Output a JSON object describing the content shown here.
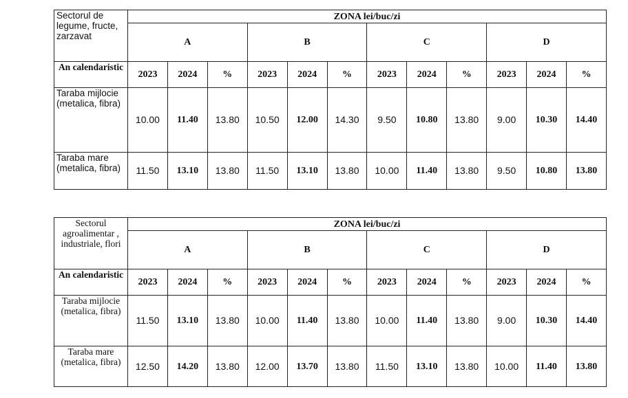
{
  "tables": [
    {
      "corner": "Sectorul de legume, fructe, zarzavat",
      "zone_title": "ZONA lei/buc/zi",
      "year_label": "An calendaristic",
      "zones": [
        {
          "name": "A",
          "columns": [
            "2023",
            "2024",
            "%"
          ]
        },
        {
          "name": "B",
          "columns": [
            "2023",
            "2024",
            "%"
          ]
        },
        {
          "name": "C",
          "columns": [
            "2023",
            "2024",
            "%"
          ]
        },
        {
          "name": "D",
          "columns": [
            "2023",
            "2024",
            "%"
          ]
        }
      ],
      "rows": [
        {
          "label": "Taraba mijlocie (metalica, fibra)",
          "values": [
            "10.00",
            "11.40",
            "13.80",
            "10.50",
            "12.00",
            "14.30",
            "9.50",
            "10.80",
            "13.80",
            "9.00",
            "10.30",
            "14.40"
          ]
        },
        {
          "label": "Taraba mare (metalica, fibra)",
          "values": [
            "11.50",
            "13.10",
            "13.80",
            "11.50",
            "13.10",
            "13.80",
            "10.00",
            "11.40",
            "13.80",
            "9.50",
            "10.80",
            "13.80"
          ]
        }
      ]
    },
    {
      "corner": "Sectorul agroalimentar , industriale, flori",
      "zone_title": "ZONA lei/buc/zi",
      "year_label": "An calendaristic",
      "zones": [
        {
          "name": "A",
          "columns": [
            "2023",
            "2024",
            "%"
          ]
        },
        {
          "name": "B",
          "columns": [
            "2023",
            "2024",
            "%"
          ]
        },
        {
          "name": "C",
          "columns": [
            "2023",
            "2024",
            "%"
          ]
        },
        {
          "name": "D",
          "columns": [
            "2023",
            "2024",
            "%"
          ]
        }
      ],
      "rows": [
        {
          "label": "Taraba mijlocie (metalica, fibra)",
          "values": [
            "11.50",
            "13.10",
            "13.80",
            "10.00",
            "11.40",
            "13.80",
            "10.00",
            "11.40",
            "13.80",
            "9.00",
            "10.30",
            "14.40"
          ]
        },
        {
          "label": "Taraba mare (metalica, fibra)",
          "values": [
            "12.50",
            "14.20",
            "13.80",
            "12.00",
            "13.70",
            "13.80",
            "11.50",
            "13.10",
            "13.80",
            "10.00",
            "11.40",
            "13.80"
          ]
        }
      ]
    }
  ]
}
